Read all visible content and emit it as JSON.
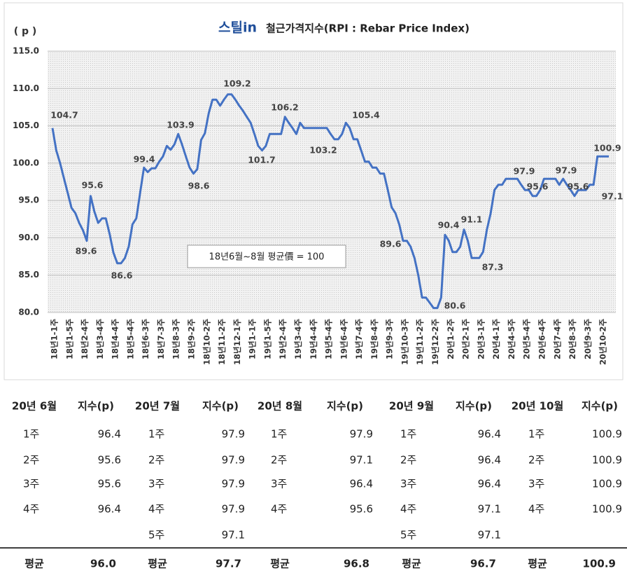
{
  "chart_data": {
    "type": "line",
    "logo": "스틸in",
    "title": "철근가격지수(RPI : Rebar Price Index)",
    "y_label": "( p )",
    "annotation": "18년6월~8월 평균價 = 100",
    "color": "#4472c4",
    "ylim": [
      80,
      115
    ],
    "yticks": [
      {
        "value": 80,
        "label": "80.0"
      },
      {
        "value": 85,
        "label": "85.0"
      },
      {
        "value": 90,
        "label": "90.0"
      },
      {
        "value": 95,
        "label": "95.0"
      },
      {
        "value": 100,
        "label": "100.0"
      },
      {
        "value": 105,
        "label": "105.0"
      },
      {
        "value": 110,
        "label": "110.0"
      },
      {
        "value": 115,
        "label": "115.0"
      }
    ],
    "grid": true,
    "categories": [
      "18년1-1주",
      null,
      null,
      null,
      "18년1-5주",
      null,
      null,
      null,
      "18년2-4주",
      null,
      null,
      null,
      "18년3-4주",
      null,
      null,
      null,
      "18년4-4주",
      null,
      null,
      null,
      "18년5-4주",
      null,
      null,
      null,
      "18년6-3주",
      null,
      null,
      null,
      "18년7-3주",
      null,
      null,
      null,
      "18년8-3주",
      null,
      null,
      null,
      "18년9-2주",
      null,
      null,
      null,
      "18년10-2주",
      null,
      null,
      null,
      "18년11-2주",
      null,
      null,
      null,
      "18년12-1주",
      null,
      null,
      null,
      "19년1-1주",
      null,
      null,
      null,
      "19년1-5주",
      null,
      null,
      null,
      "19년2-4주",
      null,
      null,
      null,
      "19년3-4주",
      null,
      null,
      null,
      "19년4-4주",
      null,
      null,
      null,
      "19년5-4주",
      null,
      null,
      null,
      "19년6-4주",
      null,
      null,
      null,
      "19년7-4주",
      null,
      null,
      null,
      "19년8-4주",
      null,
      null,
      null,
      "19년9-3주",
      null,
      null,
      null,
      "19년10-3주",
      null,
      null,
      null,
      "19년11-2주",
      null,
      null,
      null,
      "19년12-2주",
      null,
      null,
      null,
      "20년1-2주",
      null,
      null,
      null,
      "20년2-1주",
      null,
      null,
      null,
      "20년3-1주",
      null,
      null,
      null,
      "20년4-1주",
      null,
      null,
      null,
      "20년4-5주",
      null,
      null,
      null,
      "20년5-4주",
      null,
      null,
      null,
      "20년6-4주",
      null,
      null,
      null,
      "20년7-4주",
      null,
      null,
      null,
      "20년8-3주",
      null,
      null,
      null,
      "20년9-3주",
      null,
      null,
      null,
      "20년10-2주",
      null,
      null
    ],
    "values": [
      104.7,
      101.7,
      100.0,
      98.0,
      96.0,
      94.0,
      93.3,
      92.0,
      91.0,
      89.6,
      95.6,
      93.5,
      92.0,
      92.6,
      92.6,
      90.5,
      88.0,
      86.6,
      86.6,
      87.3,
      88.8,
      91.8,
      92.6,
      96.0,
      99.4,
      98.8,
      99.3,
      99.3,
      100.2,
      100.9,
      102.3,
      101.8,
      102.5,
      103.9,
      102.5,
      100.9,
      99.4,
      98.6,
      99.2,
      103.1,
      104.0,
      106.7,
      108.5,
      108.5,
      107.7,
      108.5,
      109.2,
      109.2,
      108.5,
      107.7,
      107.0,
      106.2,
      105.4,
      103.9,
      102.3,
      101.7,
      102.3,
      103.9,
      103.9,
      103.9,
      103.9,
      106.2,
      105.4,
      104.7,
      103.9,
      105.4,
      104.7,
      104.7,
      104.7,
      104.7,
      104.7,
      104.7,
      104.7,
      103.9,
      103.2,
      103.2,
      103.9,
      105.4,
      104.7,
      103.2,
      103.2,
      101.7,
      100.2,
      100.2,
      99.4,
      99.4,
      98.6,
      98.6,
      96.4,
      94.1,
      93.3,
      91.8,
      89.6,
      89.6,
      88.8,
      87.3,
      85.0,
      82.0,
      82.0,
      81.3,
      80.6,
      80.6,
      82.0,
      90.4,
      89.6,
      88.1,
      88.1,
      88.8,
      91.1,
      89.6,
      87.3,
      87.3,
      87.3,
      88.1,
      91.1,
      93.3,
      96.4,
      97.1,
      97.1,
      97.9,
      97.9,
      97.9,
      97.9,
      97.1,
      96.4,
      96.4,
      95.6,
      95.6,
      96.4,
      97.9,
      97.9,
      97.9,
      97.9,
      97.1,
      97.9,
      97.1,
      96.4,
      95.6,
      96.4,
      96.4,
      96.4,
      97.1,
      97.1,
      100.9,
      100.9,
      100.9,
      100.9
    ]
  },
  "table": {
    "columns": [
      {
        "month": "20년 6월",
        "header": "지수(p)",
        "rows": [
          [
            "1주",
            "96.4"
          ],
          [
            "2주",
            "95.6"
          ],
          [
            "3주",
            "95.6"
          ],
          [
            "4주",
            "96.4"
          ]
        ],
        "average_label": "평균",
        "average": "96.0"
      },
      {
        "month": "20년 7월",
        "header": "지수(p)",
        "rows": [
          [
            "1주",
            "97.9"
          ],
          [
            "2주",
            "97.9"
          ],
          [
            "3주",
            "97.9"
          ],
          [
            "4주",
            "97.9"
          ],
          [
            "5주",
            "97.1"
          ]
        ],
        "average_label": "평균",
        "average": "97.7"
      },
      {
        "month": "20년 8월",
        "header": "지수(p)",
        "rows": [
          [
            "1주",
            "97.9"
          ],
          [
            "2주",
            "97.1"
          ],
          [
            "3주",
            "96.4"
          ],
          [
            "4주",
            "95.6"
          ]
        ],
        "average_label": "평균",
        "average": "96.8"
      },
      {
        "month": "20년 9월",
        "header": "지수(p)",
        "rows": [
          [
            "1주",
            "96.4"
          ],
          [
            "2주",
            "96.4"
          ],
          [
            "3주",
            "96.4"
          ],
          [
            "4주",
            "97.1"
          ],
          [
            "5주",
            "97.1"
          ]
        ],
        "average_label": "평균",
        "average": "96.7"
      },
      {
        "month": "20년 10월",
        "header": "지수(p)",
        "rows": [
          [
            "1주",
            "100.9"
          ],
          [
            "2주",
            "100.9"
          ],
          [
            "3주",
            "100.9"
          ],
          [
            "4주",
            "100.9"
          ]
        ],
        "average_label": "평균",
        "average": "100.9"
      }
    ]
  }
}
